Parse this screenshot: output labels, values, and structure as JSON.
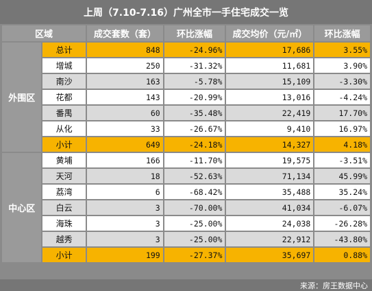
{
  "title": "上周（7.10-7.16）广州全市一手住宅成交一览",
  "headers": [
    "区域",
    "成交套数（套）",
    "环比涨幅",
    "成交均价（元/㎡）",
    "环比涨幅"
  ],
  "outer": {
    "label": "外围区",
    "total": {
      "name": "总计",
      "units": "848",
      "units_change": "-24.96%",
      "price": "17,686",
      "price_change": "3.55%"
    },
    "rows": [
      {
        "name": "增城",
        "units": "250",
        "units_change": "-31.32%",
        "price": "11,681",
        "price_change": "3.90%"
      },
      {
        "name": "南沙",
        "units": "163",
        "units_change": "-5.78%",
        "price": "15,109",
        "price_change": "-3.30%"
      },
      {
        "name": "花都",
        "units": "143",
        "units_change": "-20.99%",
        "price": "13,016",
        "price_change": "-4.24%"
      },
      {
        "name": "番禺",
        "units": "60",
        "units_change": "-35.48%",
        "price": "22,419",
        "price_change": "17.70%"
      },
      {
        "name": "从化",
        "units": "33",
        "units_change": "-26.67%",
        "price": "9,410",
        "price_change": "16.97%"
      }
    ],
    "subtotal": {
      "name": "小计",
      "units": "649",
      "units_change": "-24.18%",
      "price": "14,327",
      "price_change": "4.18%"
    }
  },
  "center": {
    "label": "中心区",
    "rows": [
      {
        "name": "黄埔",
        "units": "166",
        "units_change": "-11.70%",
        "price": "19,575",
        "price_change": "-3.51%"
      },
      {
        "name": "天河",
        "units": "18",
        "units_change": "-52.63%",
        "price": "71,134",
        "price_change": "45.99%"
      },
      {
        "name": "荔湾",
        "units": "6",
        "units_change": "-68.42%",
        "price": "35,488",
        "price_change": "35.24%"
      },
      {
        "name": "白云",
        "units": "3",
        "units_change": "-70.00%",
        "price": "41,034",
        "price_change": "-6.07%"
      },
      {
        "name": "海珠",
        "units": "3",
        "units_change": "-25.00%",
        "price": "24,038",
        "price_change": "-26.28%"
      },
      {
        "name": "越秀",
        "units": "3",
        "units_change": "-25.00%",
        "price": "22,912",
        "price_change": "-43.80%"
      }
    ],
    "subtotal": {
      "name": "小计",
      "units": "199",
      "units_change": "-27.37%",
      "price": "35,697",
      "price_change": "0.88%"
    }
  },
  "source": "来源：房王数据中心",
  "colors": {
    "header": "#9a9a9a",
    "highlight": "#f7b300",
    "band": "#dadada"
  }
}
